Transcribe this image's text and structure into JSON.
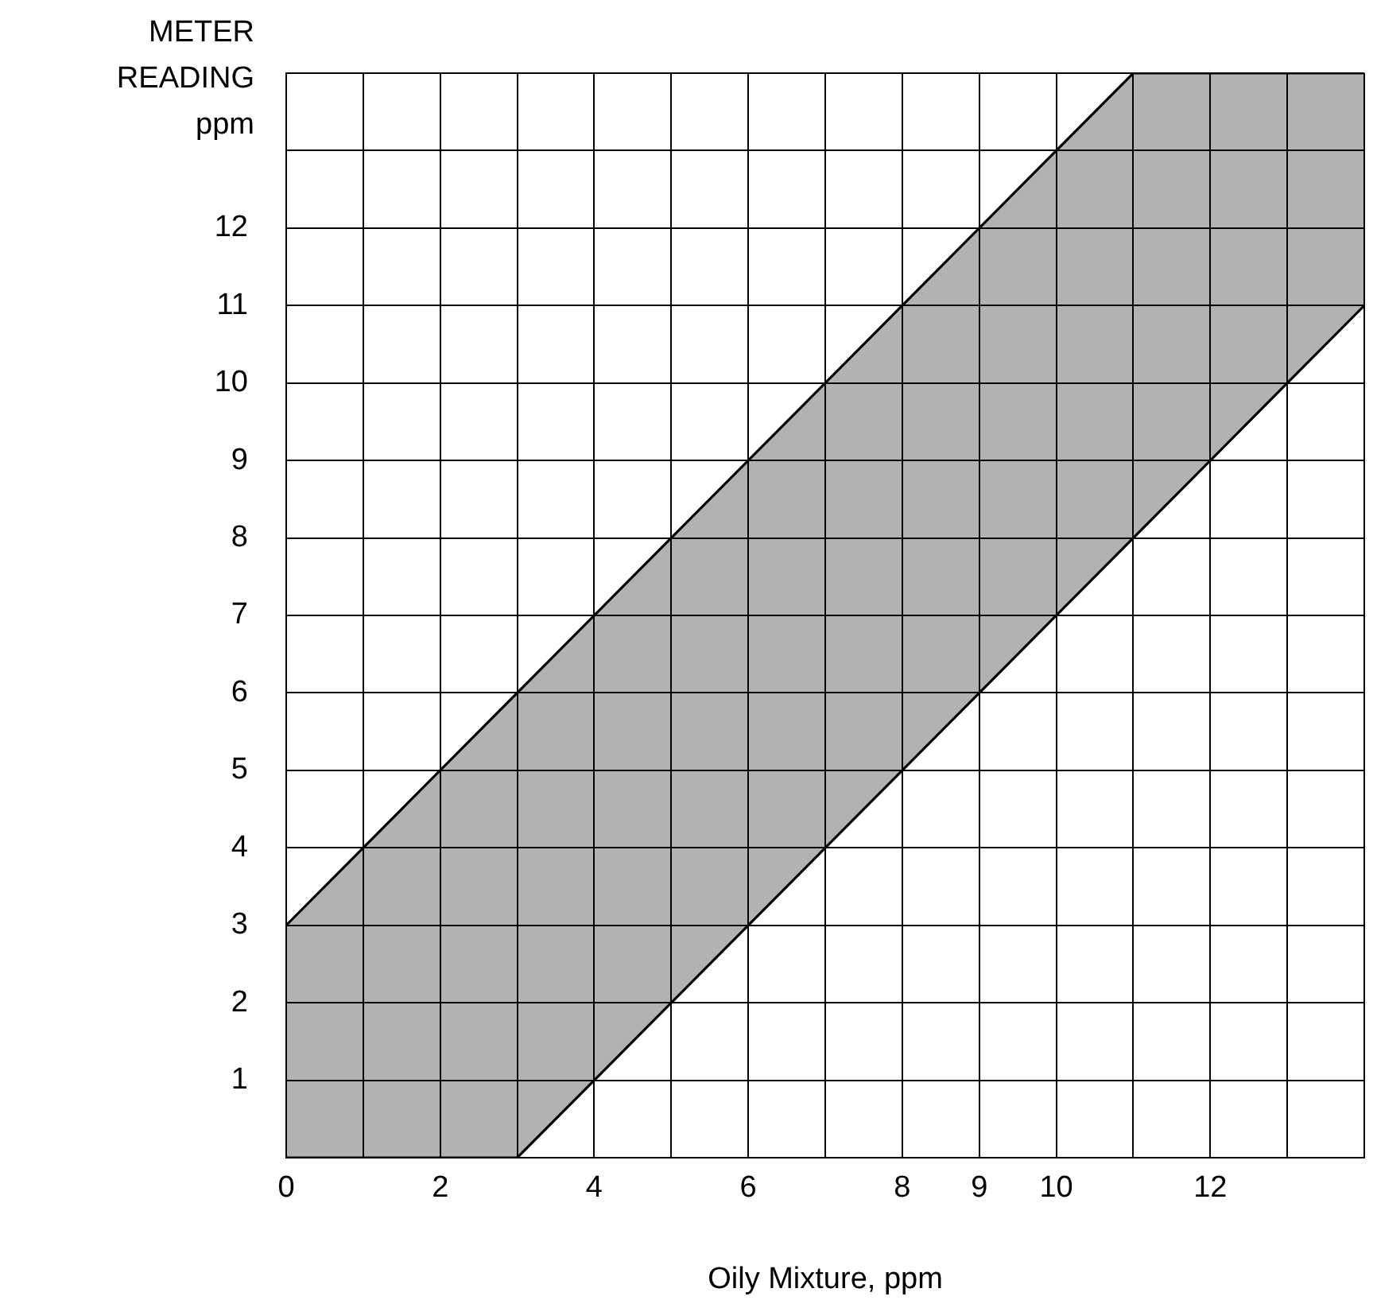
{
  "chart_data": {
    "type": "line",
    "xlabel": "Oily Mixture, ppm",
    "ylabel": "METER READING ppm",
    "x": [
      0,
      3,
      11,
      14
    ],
    "series": [
      {
        "type": "area",
        "color": "#000000",
        "values": [
          3,
          6,
          14,
          14
        ]
      },
      {
        "color": "#000000",
        "values": [
          0,
          0,
          8,
          11
        ]
      }
    ],
    "xlim": [
      0,
      14
    ],
    "ylim": [
      0,
      14
    ],
    "xticks": [
      0,
      {
        "value": 1,
        "label": null
      },
      2,
      {
        "value": 3,
        "label": null
      },
      4,
      {
        "value": 5,
        "label": null
      },
      6,
      {
        "value": 7,
        "label": null
      },
      8,
      9,
      10,
      {
        "value": 11,
        "label": null
      },
      12,
      {
        "value": 13,
        "label": null
      },
      {
        "value": 14,
        "label": null
      }
    ],
    "yticks": [
      {
        "value": 0,
        "label": null
      },
      1,
      2,
      3,
      4,
      5,
      6,
      7,
      8,
      9,
      10,
      11,
      12,
      {
        "value": 13,
        "label": null
      },
      {
        "value": 14,
        "label": null
      }
    ],
    "grid": true,
    "legend": false,
    "marker": "none",
    "line_style": "solid"
  }
}
